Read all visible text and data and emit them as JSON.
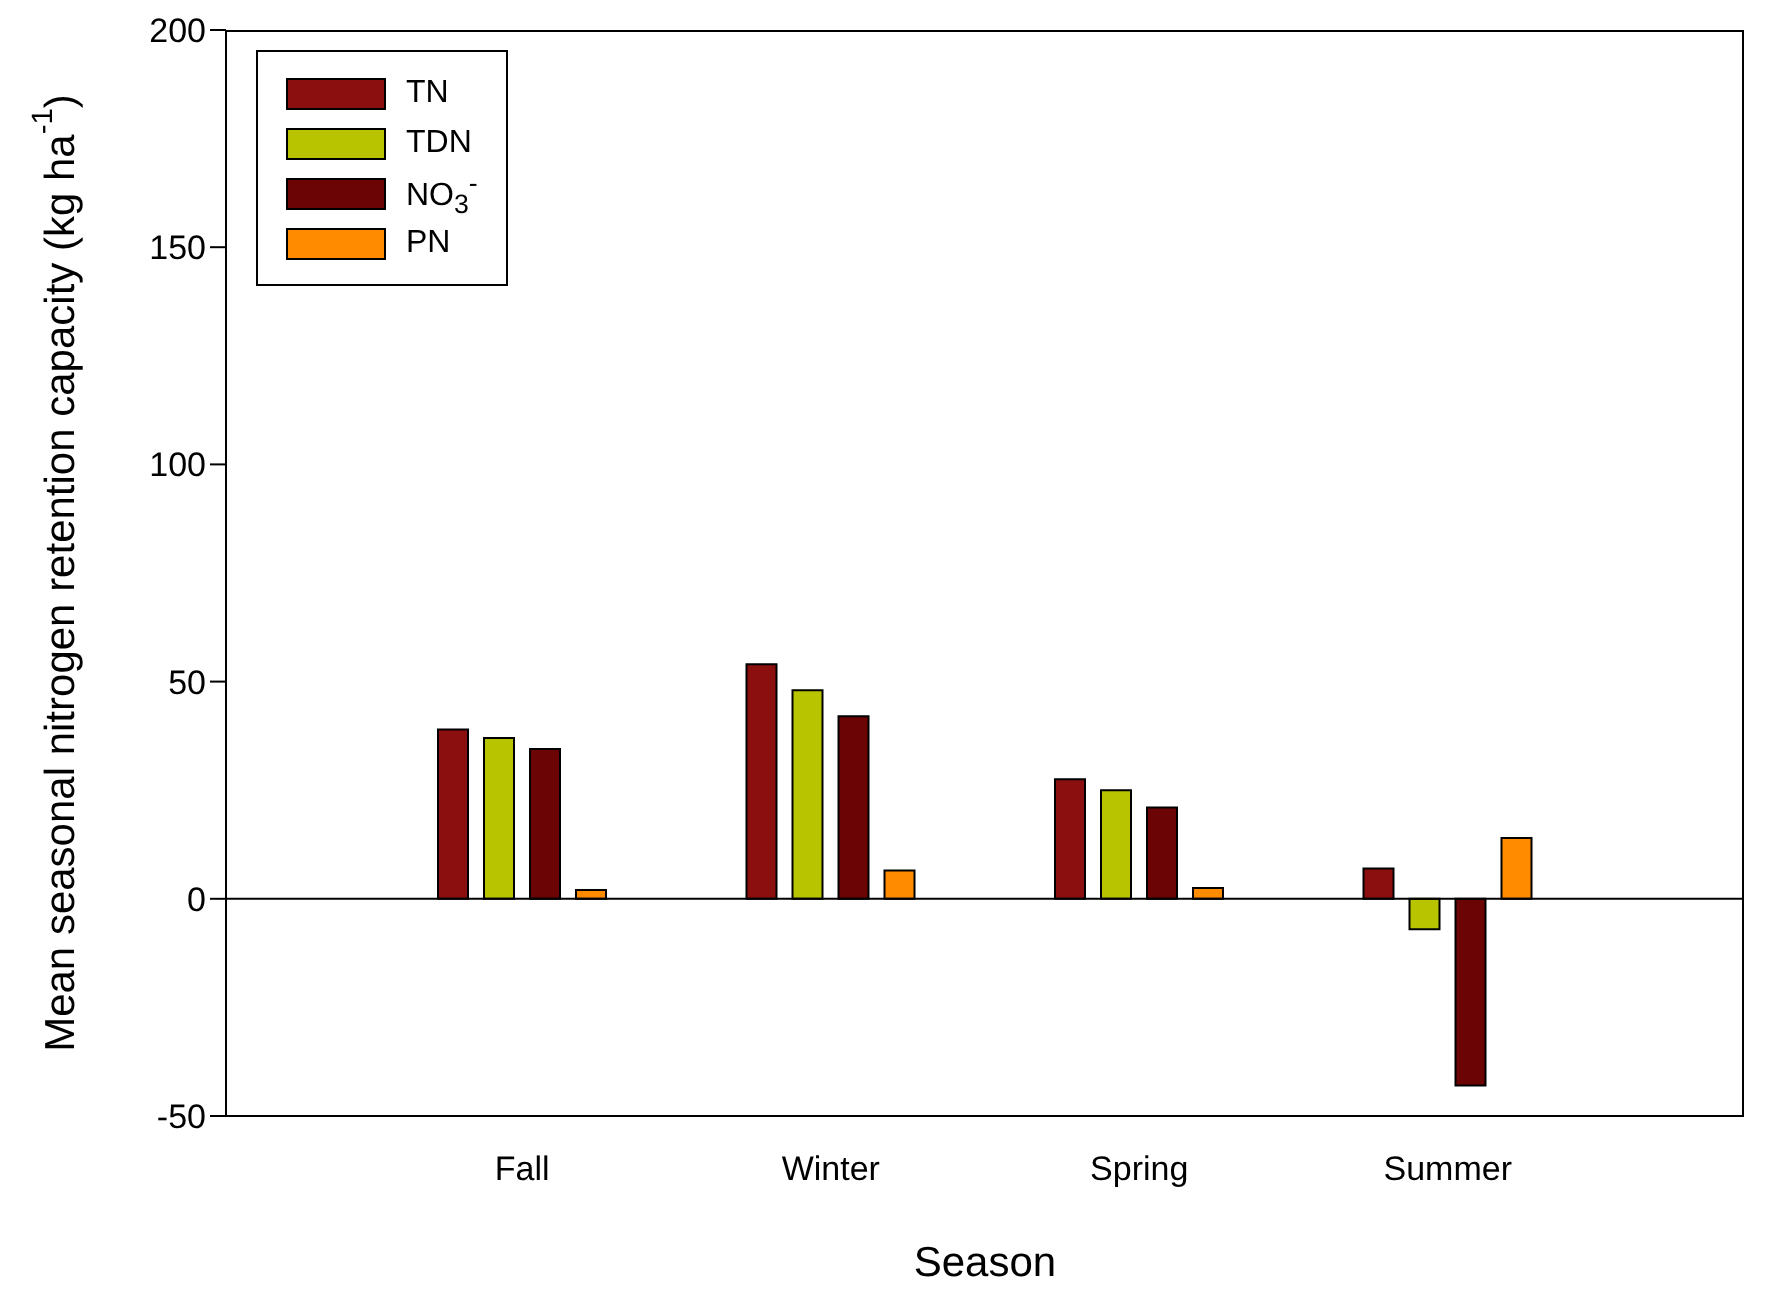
{
  "chart_data": {
    "type": "bar",
    "xlabel": "Season",
    "ylabel": "Mean seasonal nitrogen retention capacity (kg ha$^{-1}$)",
    "categories": [
      "Fall",
      "Winter",
      "Spring",
      "Summer"
    ],
    "series": [
      {
        "name": "TN",
        "color": "#8b0f0f",
        "values": [
          39,
          54,
          27.5,
          7
        ]
      },
      {
        "name": "TDN",
        "color": "#b8c400",
        "values": [
          37,
          48,
          25,
          -7
        ]
      },
      {
        "name": "NO$_{3}$$^{-}$",
        "color": "#6b0505",
        "values": [
          34.5,
          42,
          21,
          -43
        ]
      },
      {
        "name": "PN",
        "color": "#ff8c00",
        "values": [
          2,
          6.5,
          2.5,
          14
        ]
      }
    ],
    "ylim": [
      -50,
      200
    ],
    "yticks": [
      -50,
      0,
      50,
      100,
      150,
      200
    ],
    "grid": false,
    "legend": "top left",
    "ref_lines": [
      {
        "axis": "y",
        "value": 0,
        "label": null,
        "color": "#000000"
      }
    ]
  }
}
